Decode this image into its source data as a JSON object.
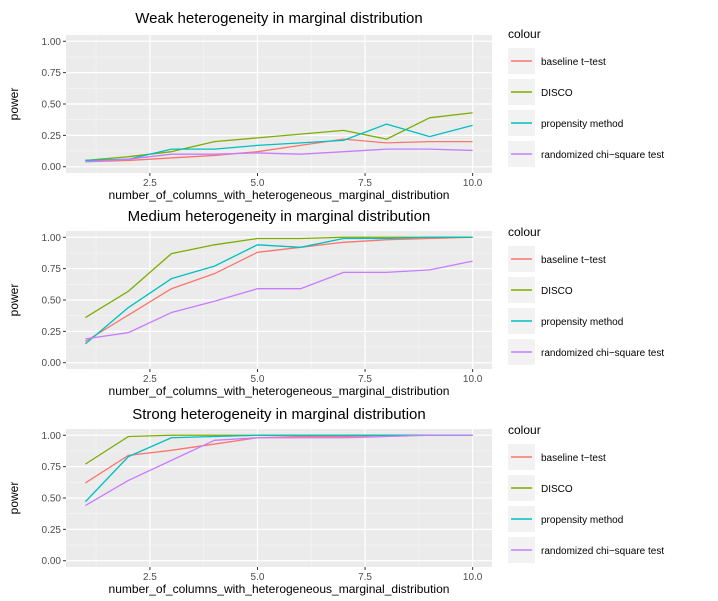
{
  "chart_data": [
    {
      "type": "line",
      "title": "Weak heterogeneity in marginal distribution",
      "xlabel": "number_of_columns_with_heterogeneous_marginal_distribution",
      "ylabel": "power",
      "xlim": [
        0.55,
        10.45
      ],
      "ylim": [
        -0.05,
        1.05
      ],
      "xticks": [
        2.5,
        5.0,
        7.5,
        10.0
      ],
      "xtick_labels": [
        "2.5",
        "5.0",
        "7.5",
        "10.0"
      ],
      "yticks": [
        0,
        0.25,
        0.5,
        0.75,
        1.0
      ],
      "ytick_labels": [
        "0.00",
        "0.25",
        "0.50",
        "0.75",
        "1.00"
      ],
      "grid": true,
      "legend_position": "right",
      "legend_title": "colour",
      "x": [
        1,
        2,
        3,
        4,
        5,
        6,
        7,
        8,
        9,
        10
      ],
      "series": [
        {
          "name": "baseline t−test",
          "color": "#F8766D",
          "values": [
            0.04,
            0.05,
            0.07,
            0.09,
            0.12,
            0.17,
            0.22,
            0.19,
            0.2,
            0.2
          ]
        },
        {
          "name": "DISCO",
          "color": "#7CAE00",
          "values": [
            0.05,
            0.08,
            0.12,
            0.2,
            0.23,
            0.26,
            0.29,
            0.22,
            0.39,
            0.43
          ]
        },
        {
          "name": "propensity method",
          "color": "#00BFC4",
          "values": [
            0.05,
            0.06,
            0.14,
            0.14,
            0.17,
            0.19,
            0.21,
            0.34,
            0.24,
            0.33
          ]
        },
        {
          "name": "randomized chi−square test",
          "color": "#C77CFF",
          "values": [
            0.04,
            0.06,
            0.1,
            0.1,
            0.11,
            0.1,
            0.12,
            0.14,
            0.14,
            0.13
          ]
        }
      ]
    },
    {
      "type": "line",
      "title": "Medium heterogeneity in marginal distribution",
      "xlabel": "number_of_columns_with_heterogeneous_marginal_distribution",
      "ylabel": "power",
      "xlim": [
        0.55,
        10.45
      ],
      "ylim": [
        -0.05,
        1.05
      ],
      "xticks": [
        2.5,
        5.0,
        7.5,
        10.0
      ],
      "xtick_labels": [
        "2.5",
        "5.0",
        "7.5",
        "10.0"
      ],
      "yticks": [
        0,
        0.25,
        0.5,
        0.75,
        1.0
      ],
      "ytick_labels": [
        "0.00",
        "0.25",
        "0.50",
        "0.75",
        "1.00"
      ],
      "grid": true,
      "legend_position": "right",
      "legend_title": "colour",
      "x": [
        1,
        2,
        3,
        4,
        5,
        6,
        7,
        8,
        9,
        10
      ],
      "series": [
        {
          "name": "baseline t−test",
          "color": "#F8766D",
          "values": [
            0.17,
            0.38,
            0.59,
            0.71,
            0.88,
            0.92,
            0.96,
            0.98,
            0.99,
            1.0
          ]
        },
        {
          "name": "DISCO",
          "color": "#7CAE00",
          "values": [
            0.36,
            0.57,
            0.87,
            0.94,
            0.99,
            0.99,
            1.0,
            1.0,
            1.0,
            1.0
          ]
        },
        {
          "name": "propensity method",
          "color": "#00BFC4",
          "values": [
            0.15,
            0.44,
            0.67,
            0.77,
            0.94,
            0.92,
            0.99,
            0.99,
            1.0,
            1.0
          ]
        },
        {
          "name": "randomized chi−square test",
          "color": "#C77CFF",
          "values": [
            0.19,
            0.24,
            0.4,
            0.49,
            0.59,
            0.59,
            0.72,
            0.72,
            0.74,
            0.81
          ]
        }
      ]
    },
    {
      "type": "line",
      "title": "Strong heterogeneity in marginal distribution",
      "xlabel": "number_of_columns_with_heterogeneous_marginal_distribution",
      "ylabel": "power",
      "xlim": [
        0.55,
        10.45
      ],
      "ylim": [
        -0.05,
        1.05
      ],
      "xticks": [
        2.5,
        5.0,
        7.5,
        10.0
      ],
      "xtick_labels": [
        "2.5",
        "5.0",
        "7.5",
        "10.0"
      ],
      "yticks": [
        0,
        0.25,
        0.5,
        0.75,
        1.0
      ],
      "ytick_labels": [
        "0.00",
        "0.25",
        "0.50",
        "0.75",
        "1.00"
      ],
      "grid": true,
      "legend_position": "right",
      "legend_title": "colour",
      "x": [
        1,
        2,
        3,
        4,
        5,
        6,
        7,
        8,
        9,
        10
      ],
      "series": [
        {
          "name": "baseline t−test",
          "color": "#F8766D",
          "values": [
            0.62,
            0.84,
            0.88,
            0.93,
            0.98,
            0.99,
            0.99,
            1.0,
            1.0,
            1.0
          ]
        },
        {
          "name": "DISCO",
          "color": "#7CAE00",
          "values": [
            0.77,
            0.99,
            1.0,
            1.0,
            1.0,
            1.0,
            1.0,
            1.0,
            1.0,
            1.0
          ]
        },
        {
          "name": "propensity method",
          "color": "#00BFC4",
          "values": [
            0.47,
            0.83,
            0.98,
            0.99,
            1.0,
            1.0,
            1.0,
            1.0,
            1.0,
            1.0
          ]
        },
        {
          "name": "randomized chi−square test",
          "color": "#C77CFF",
          "values": [
            0.44,
            0.64,
            0.8,
            0.96,
            0.98,
            0.98,
            0.98,
            0.99,
            1.0,
            1.0
          ]
        }
      ]
    }
  ]
}
